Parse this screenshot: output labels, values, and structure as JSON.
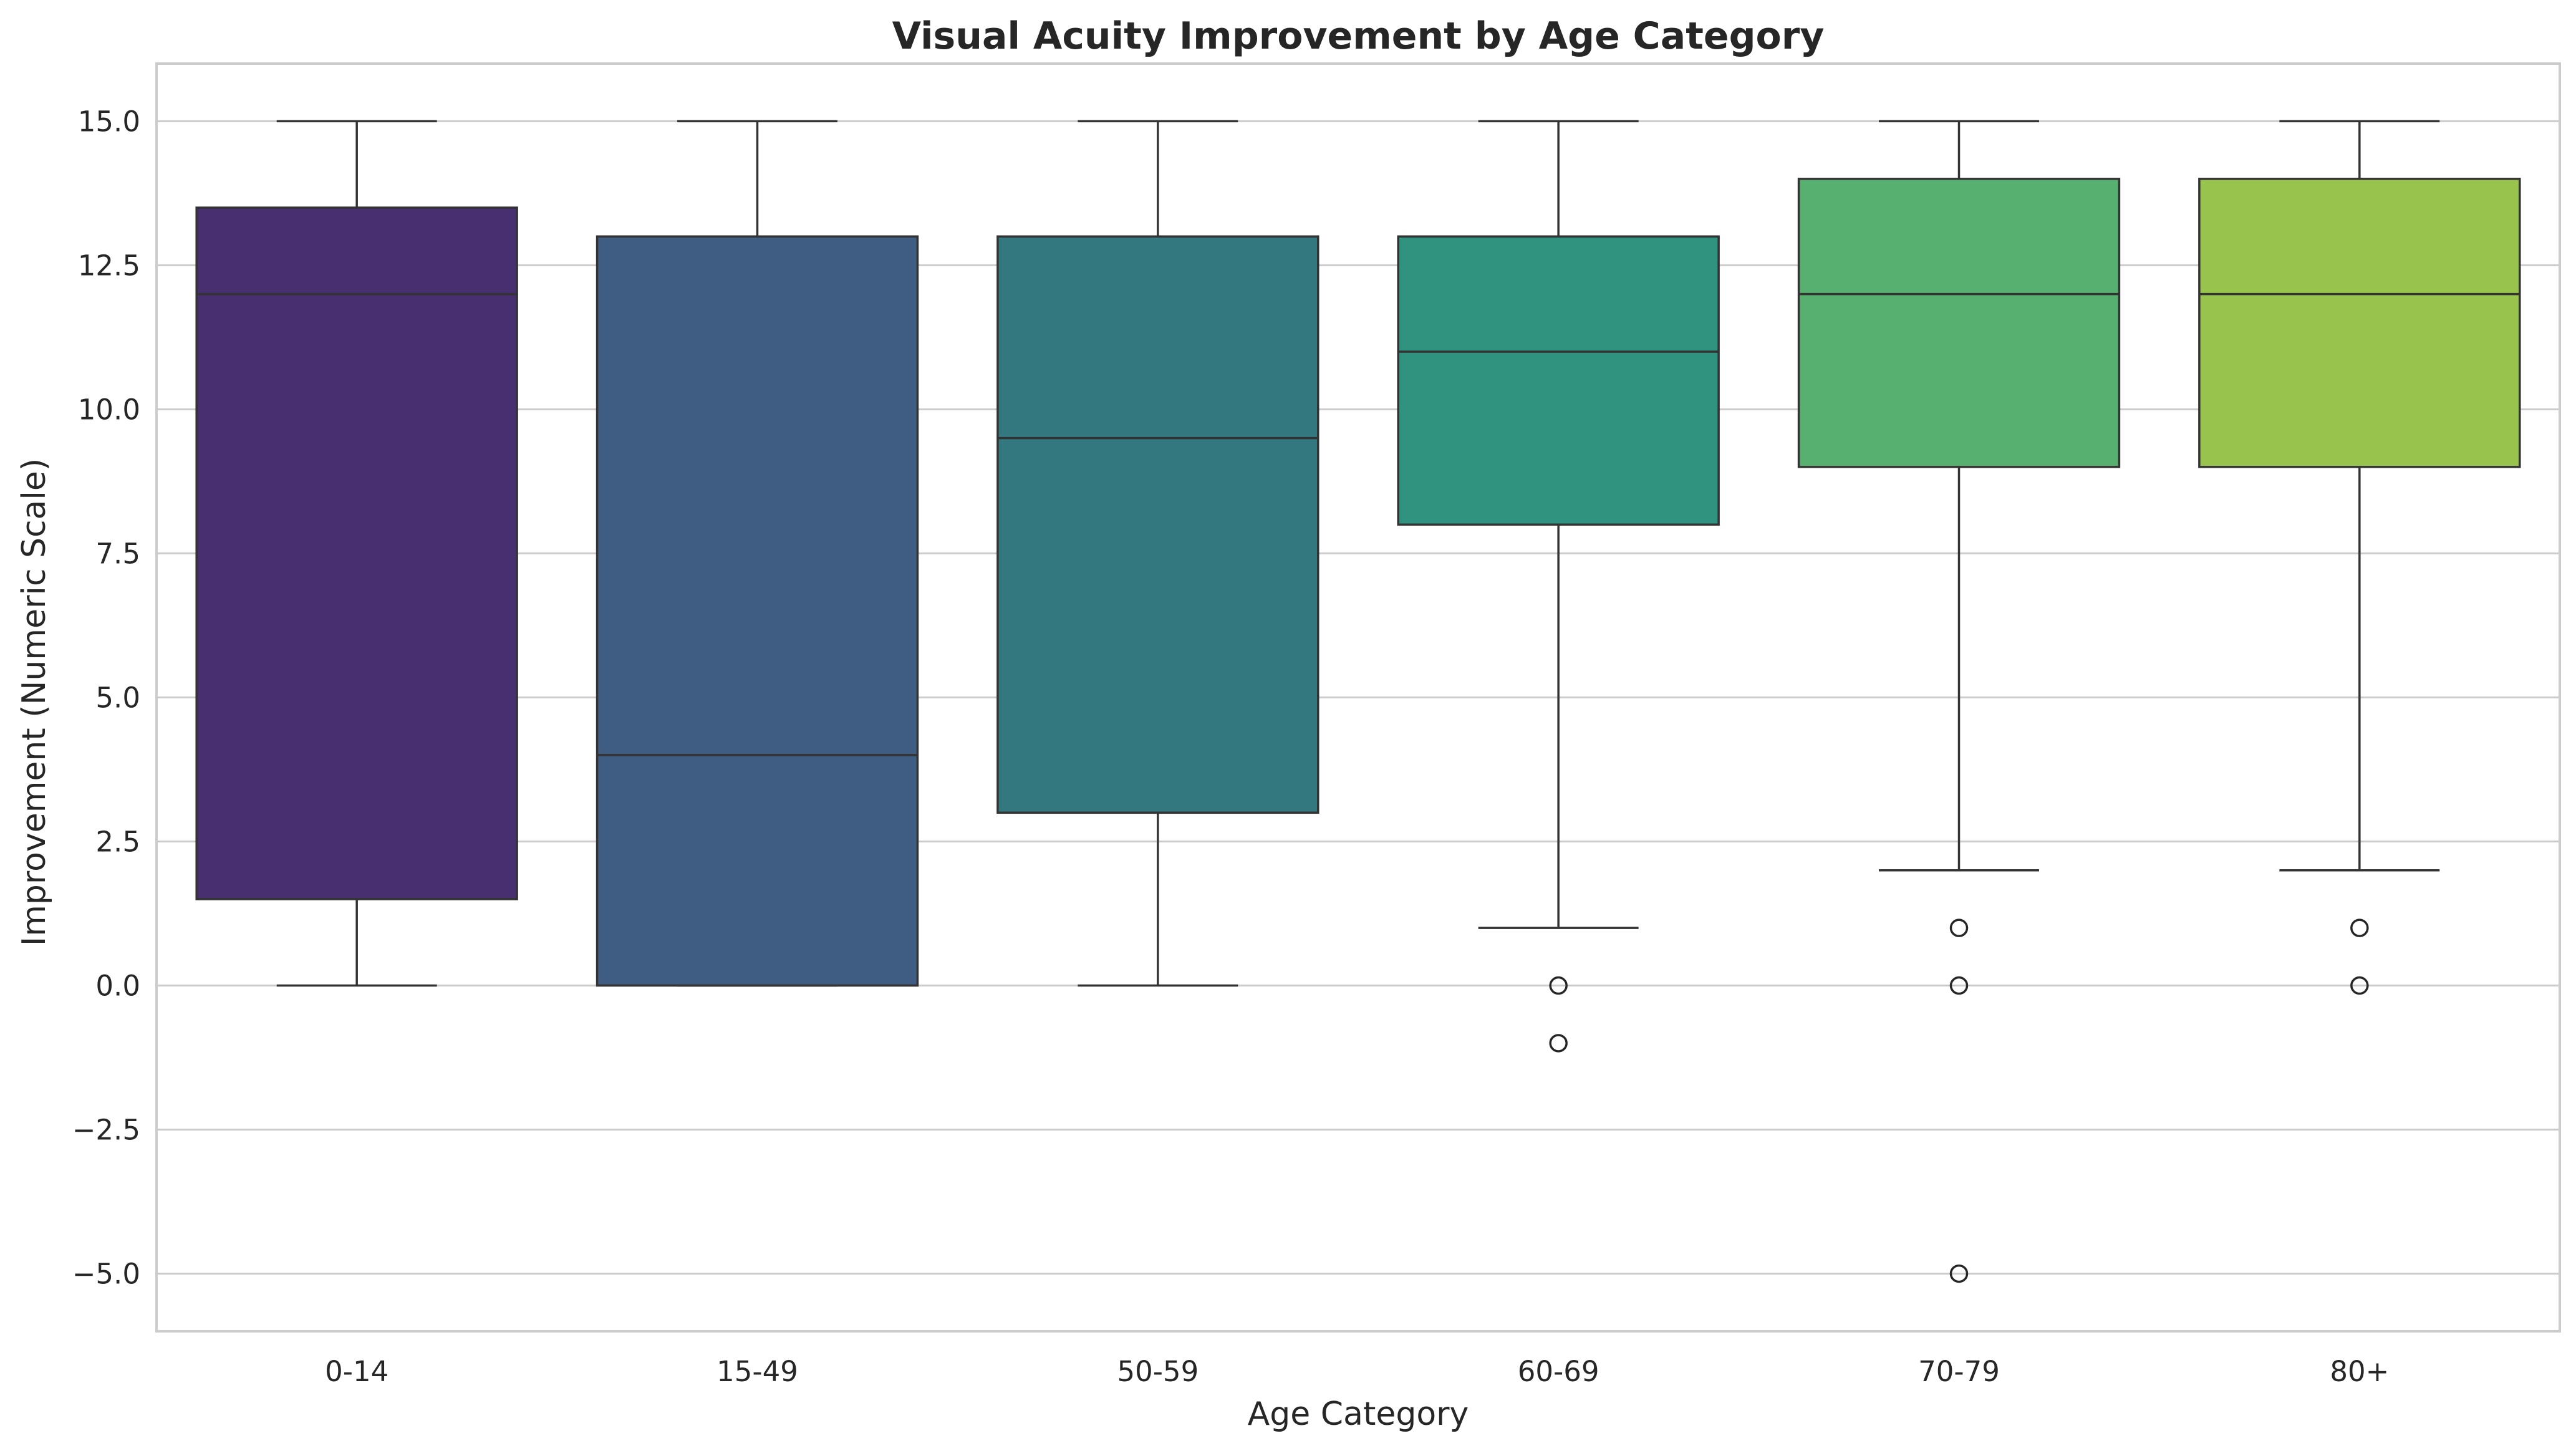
{
  "chart_data": {
    "type": "box",
    "title": "Visual Acuity Improvement by Age Category",
    "xlabel": "Age Category",
    "ylabel": "Improvement (Numeric Scale)",
    "ylim": [
      -6,
      16
    ],
    "yticks": [
      -5.0,
      -2.5,
      0.0,
      2.5,
      5.0,
      7.5,
      10.0,
      12.5,
      15.0
    ],
    "ytick_labels": [
      "−5.0",
      "−2.5",
      "0.0",
      "2.5",
      "5.0",
      "7.5",
      "10.0",
      "12.5",
      "15.0"
    ],
    "grid": "horizontal",
    "categories": [
      "0-14",
      "15-49",
      "50-59",
      "60-69",
      "70-79",
      "80+"
    ],
    "colors": [
      "#482f70",
      "#3f5d82",
      "#33777f",
      "#309380",
      "#57b06f",
      "#98c34c"
    ],
    "boxes": [
      {
        "category": "0-14",
        "whisker_low": 0,
        "q1": 1.5,
        "median": 12,
        "q3": 13.5,
        "whisker_high": 15,
        "outliers": []
      },
      {
        "category": "15-49",
        "whisker_low": 0,
        "q1": 0,
        "median": 4,
        "q3": 13,
        "whisker_high": 15,
        "outliers": []
      },
      {
        "category": "50-59",
        "whisker_low": 0,
        "q1": 3,
        "median": 9.5,
        "q3": 13,
        "whisker_high": 15,
        "outliers": []
      },
      {
        "category": "60-69",
        "whisker_low": 1,
        "q1": 8,
        "median": 11,
        "q3": 13,
        "whisker_high": 15,
        "outliers": [
          0,
          -1
        ]
      },
      {
        "category": "70-79",
        "whisker_low": 2,
        "q1": 9,
        "median": 12,
        "q3": 14,
        "whisker_high": 15,
        "outliers": [
          1,
          0,
          -5
        ]
      },
      {
        "category": "80+",
        "whisker_low": 2,
        "q1": 9,
        "median": 12,
        "q3": 14,
        "whisker_high": 15,
        "outliers": [
          1,
          0
        ]
      }
    ]
  }
}
